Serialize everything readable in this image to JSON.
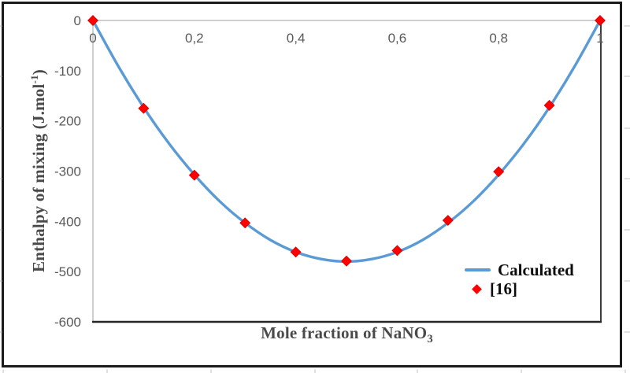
{
  "figure": {
    "background": "#ffffff",
    "frame_color": "#1a1a1a"
  },
  "colors": {
    "axis_gray": "#bfbfbf",
    "axis_dark": "#262626",
    "tick_text": "#595959",
    "title_text": "#4a4a4a",
    "legend_text": "#0d0d0d",
    "curve_blue": "#5b9bd5",
    "marker_red": "#ff0000",
    "marker_edge": "#d40000",
    "outer_tick": "#cccccc"
  },
  "chart_data": {
    "type": "line+scatter",
    "title": "",
    "xlabel": {
      "main": "Mole fraction of NaNO",
      "sub": "3"
    },
    "ylabel": {
      "main": "Enthalpy of mixing (J.mol",
      "sup": "-1",
      "end": ")"
    },
    "xlim": [
      0,
      1
    ],
    "ylim": [
      -600,
      0
    ],
    "grid": "off",
    "x_ticks": [
      {
        "v": 0,
        "label": "0"
      },
      {
        "v": 0.2,
        "label": "0,2"
      },
      {
        "v": 0.4,
        "label": "0,4"
      },
      {
        "v": 0.6,
        "label": "0,6"
      },
      {
        "v": 0.8,
        "label": "0,8"
      },
      {
        "v": 1,
        "label": "1"
      }
    ],
    "y_ticks": [
      {
        "v": 0,
        "label": "0"
      },
      {
        "v": -100,
        "label": "-100"
      },
      {
        "v": -200,
        "label": "-200"
      },
      {
        "v": -300,
        "label": "-300"
      },
      {
        "v": -400,
        "label": "-400"
      },
      {
        "v": -500,
        "label": "-500"
      },
      {
        "v": -600,
        "label": "-600"
      }
    ],
    "series": [
      {
        "name": "Calculated",
        "type": "line",
        "color": "#5b9bd5",
        "x": [
          0,
          0.05,
          0.1,
          0.15,
          0.2,
          0.25,
          0.3,
          0.35,
          0.4,
          0.45,
          0.5,
          0.55,
          0.6,
          0.65,
          0.7,
          0.75,
          0.8,
          0.85,
          0.9,
          0.95,
          1
        ],
        "y": [
          0,
          -91,
          -173,
          -245,
          -307,
          -360,
          -403,
          -437,
          -461,
          -475,
          -480,
          -475,
          -461,
          -437,
          -403,
          -360,
          -307,
          -245,
          -173,
          -91,
          0
        ]
      },
      {
        "name": "[16]",
        "type": "scatter",
        "marker": "diamond",
        "color": "#ff0000",
        "x": [
          0,
          0.1,
          0.2,
          0.3,
          0.4,
          0.5,
          0.6,
          0.7,
          0.8,
          0.9,
          1
        ],
        "y": [
          0,
          -175,
          -308,
          -403,
          -461,
          -479,
          -458,
          -398,
          -301,
          -169,
          0
        ]
      }
    ],
    "legend": {
      "position": "inside-lower-right",
      "entries": [
        {
          "label": "Calculated",
          "swatch": "line"
        },
        {
          "label": "[16]",
          "swatch": "diamond"
        }
      ]
    }
  }
}
